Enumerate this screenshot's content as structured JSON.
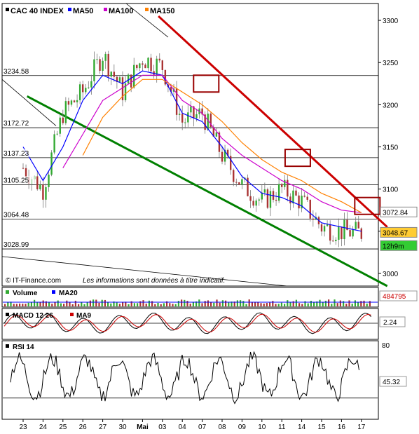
{
  "header": {
    "index_name": "CAC 40 INDEX",
    "ma50_label": "MA50",
    "ma100_label": "MA100",
    "ma150_label": "MA150",
    "ma50_color": "#0000ff",
    "ma100_color": "#cc00cc",
    "ma150_color": "#ff8000"
  },
  "footer": {
    "source": "© IT-Finance.com",
    "disclaimer": "Les informations sont données à titre indicatif."
  },
  "chart_data": [
    {
      "type": "candlestick",
      "title": "CAC 40 INDEX",
      "ylim": [
        2985,
        3320
      ],
      "yticks": [
        3000,
        3050,
        3100,
        3150,
        3200,
        3250,
        3300
      ],
      "ytick_labels": [
        "3000",
        "3050",
        "3100",
        "3150",
        "3200",
        "3250",
        "3300"
      ],
      "levels": [
        {
          "label": "3234.58",
          "value": 3234.58
        },
        {
          "label": "3172.72",
          "value": 3172.72
        },
        {
          "label": "3137.23",
          "value": 3137.23
        },
        {
          "label": "3105.25",
          "value": 3105.25
        },
        {
          "label": "3064.48",
          "value": 3064.48
        },
        {
          "label": "3028.99",
          "value": 3028.99
        }
      ],
      "price_tags": [
        {
          "label": "3072.84",
          "value": 3072.84,
          "color": "#ffffff"
        },
        {
          "label": "3048.67",
          "value": 3048.67,
          "color": "#ffcc33"
        },
        {
          "label": "12h9m",
          "value": 3033,
          "color": "#33cc33"
        }
      ],
      "x_tick_labels": [
        "23",
        "24",
        "25",
        "26",
        "27",
        "30",
        "Mai",
        "03",
        "04",
        "07",
        "08",
        "09",
        "10",
        "11",
        "14",
        "15",
        "16",
        "17"
      ],
      "close_by_day": [
        3125,
        3100,
        3190,
        3215,
        3260,
        3215,
        3255,
        3245,
        3180,
        3190,
        3140,
        3105,
        3085,
        3100,
        3085,
        3055,
        3050,
        3048
      ],
      "series": [
        {
          "name": "MA50",
          "color": "#0000ff",
          "values": [
            3150,
            3110,
            3150,
            3205,
            3235,
            3225,
            3240,
            3235,
            3190,
            3180,
            3150,
            3115,
            3095,
            3090,
            3080,
            3060,
            3055,
            3050
          ]
        },
        {
          "name": "MA100",
          "color": "#cc00cc",
          "values": [
            null,
            null,
            3125,
            3165,
            3205,
            3220,
            3235,
            3235,
            3205,
            3190,
            3160,
            3140,
            3125,
            3110,
            3100,
            3085,
            3075,
            3072
          ]
        },
        {
          "name": "MA150",
          "color": "#ff8000",
          "values": [
            null,
            null,
            null,
            3140,
            3185,
            3210,
            3230,
            3230,
            3215,
            3200,
            3180,
            3155,
            3135,
            3120,
            3110,
            3095,
            3085,
            3072
          ]
        }
      ],
      "trendlines": [
        {
          "name": "resistance",
          "color": "#cc0000",
          "from": {
            "day": 7.8,
            "value": 3305
          },
          "to": {
            "day": 19.3,
            "value": 3055
          }
        },
        {
          "name": "support",
          "color": "#008000",
          "from": {
            "day": 1.2,
            "value": 3210
          },
          "to": {
            "day": 19.3,
            "value": 2985
          }
        }
      ],
      "highlight_boxes": [
        {
          "day": 10.2,
          "value": 3225
        },
        {
          "day": 14.8,
          "value": 3137
        },
        {
          "day": 18.3,
          "value": 3080
        }
      ]
    },
    {
      "type": "bar",
      "title": "Volume",
      "legend": [
        "Volume",
        "MA20"
      ],
      "last_value_label": "484795"
    },
    {
      "type": "line",
      "title": "MACD 12 26",
      "legend": [
        "MACD 12 26",
        "MA9"
      ],
      "last_value_label": "2.24"
    },
    {
      "type": "line",
      "title": "RSI 14",
      "ylim": [
        10,
        85
      ],
      "ytick_labels": [
        "80"
      ],
      "last_value_label": "45.32"
    }
  ]
}
